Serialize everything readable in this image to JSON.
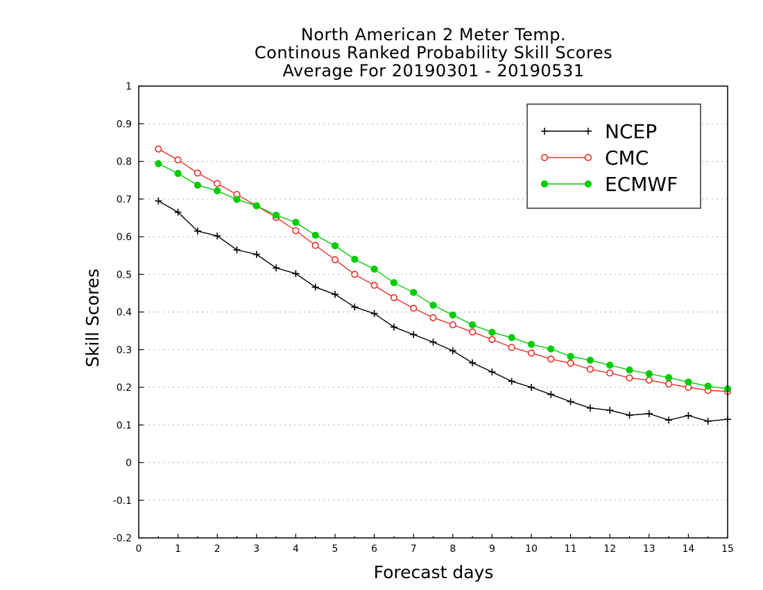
{
  "chart_data": {
    "type": "line",
    "title": [
      "North American 2 Meter Temp.",
      "Continous Ranked Probability Skill Scores",
      "Average For 20190301 - 20190531"
    ],
    "xlabel": "Forecast days",
    "ylabel": "Skill Scores",
    "xlim": [
      0,
      15
    ],
    "ylim": [
      -0.2,
      1
    ],
    "xticks": [
      "0",
      "1",
      "2",
      "3",
      "4",
      "5",
      "6",
      "7",
      "8",
      "9",
      "10",
      "11",
      "12",
      "13",
      "14",
      "15"
    ],
    "yticks": [
      "-0.2",
      "-0.1",
      "0",
      "0.1",
      "0.2",
      "0.3",
      "0.4",
      "0.5",
      "0.6",
      "0.7",
      "0.8",
      "0.9",
      "1"
    ],
    "grid": "horizontal dotted",
    "legend_position": "top-right",
    "x": [
      0.5,
      1,
      1.5,
      2,
      2.5,
      3,
      3.5,
      4,
      4.5,
      5,
      5.5,
      6,
      6.5,
      7,
      7.5,
      8,
      8.5,
      9,
      9.5,
      10,
      10.5,
      11,
      11.5,
      12,
      12.5,
      13,
      13.5,
      14,
      14.5,
      15
    ],
    "series": [
      {
        "name": "NCEP",
        "color": "#000000",
        "marker": "plus",
        "values": [
          0.695,
          0.665,
          0.615,
          0.602,
          0.565,
          0.553,
          0.517,
          0.502,
          0.466,
          0.447,
          0.413,
          0.396,
          0.36,
          0.34,
          0.32,
          0.297,
          0.265,
          0.241,
          0.216,
          0.2,
          0.181,
          0.162,
          0.145,
          0.139,
          0.126,
          0.13,
          0.113,
          0.125,
          0.11,
          0.115
        ]
      },
      {
        "name": "CMC",
        "color": "#e8302a",
        "marker": "open-circle",
        "values": [
          0.833,
          0.804,
          0.769,
          0.741,
          0.712,
          0.682,
          0.651,
          0.616,
          0.577,
          0.539,
          0.5,
          0.471,
          0.438,
          0.41,
          0.385,
          0.366,
          0.347,
          0.327,
          0.306,
          0.291,
          0.275,
          0.264,
          0.248,
          0.238,
          0.225,
          0.219,
          0.209,
          0.2,
          0.192,
          0.189
        ]
      },
      {
        "name": "ECMWF",
        "color": "#00cc00",
        "marker": "filled-circle",
        "values": [
          0.794,
          0.768,
          0.737,
          0.722,
          0.699,
          0.682,
          0.657,
          0.638,
          0.604,
          0.576,
          0.54,
          0.514,
          0.478,
          0.452,
          0.418,
          0.392,
          0.366,
          0.346,
          0.332,
          0.314,
          0.302,
          0.282,
          0.272,
          0.259,
          0.246,
          0.236,
          0.226,
          0.214,
          0.203,
          0.196
        ]
      }
    ]
  }
}
